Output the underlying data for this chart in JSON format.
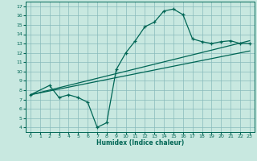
{
  "xlabel": "Humidex (Indice chaleur)",
  "xlim": [
    -0.5,
    23.5
  ],
  "ylim": [
    3.5,
    17.5
  ],
  "xticks": [
    0,
    1,
    2,
    3,
    4,
    5,
    6,
    7,
    8,
    9,
    10,
    11,
    12,
    13,
    14,
    15,
    16,
    17,
    18,
    19,
    20,
    21,
    22,
    23
  ],
  "yticks": [
    4,
    5,
    6,
    7,
    8,
    9,
    10,
    11,
    12,
    13,
    14,
    15,
    16,
    17
  ],
  "bg_color": "#c8e8e0",
  "grid_color": "#88bbbb",
  "line_color": "#006655",
  "line1_x": [
    0,
    2,
    3,
    4,
    5,
    6,
    7,
    8,
    9,
    10,
    11,
    12,
    13,
    14,
    15,
    16,
    17,
    18,
    19,
    20,
    21,
    22,
    23
  ],
  "line1_y": [
    7.5,
    8.5,
    7.2,
    7.5,
    7.2,
    6.7,
    4.0,
    4.5,
    10.2,
    12.0,
    13.3,
    14.8,
    15.3,
    16.5,
    16.7,
    16.1,
    13.5,
    13.2,
    13.0,
    13.2,
    13.3,
    13.0,
    13.0
  ],
  "line2_x": [
    0,
    23
  ],
  "line2_y": [
    7.5,
    13.3
  ],
  "line3_x": [
    0,
    23
  ],
  "line3_y": [
    7.5,
    12.2
  ]
}
